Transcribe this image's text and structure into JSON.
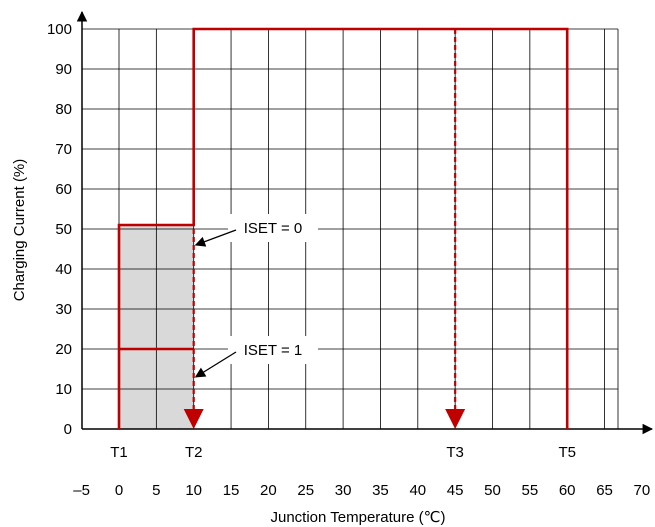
{
  "colors": {
    "curve": "#c00000",
    "grid": "#000000",
    "shade": "#d9d9d9",
    "callout_bg": "#ffffff"
  },
  "chart_data": {
    "type": "line",
    "title": "",
    "xlabel": "Junction Temperature (℃)",
    "ylabel": "Charging Current (%)",
    "xlim": [
      -5,
      70
    ],
    "ylim": [
      0,
      100
    ],
    "x_ticks": [
      -5,
      0,
      5,
      10,
      15,
      20,
      25,
      30,
      35,
      40,
      45,
      50,
      55,
      60,
      65,
      70
    ],
    "x_tick_labels": [
      "–5",
      "0",
      "5",
      "10",
      "15",
      "20",
      "25",
      "30",
      "35",
      "40",
      "45",
      "50",
      "55",
      "60",
      "65",
      "70"
    ],
    "y_ticks": [
      0,
      10,
      20,
      30,
      40,
      50,
      60,
      70,
      80,
      90,
      100
    ],
    "y_tick_labels": [
      "0",
      "10",
      "20",
      "30",
      "40",
      "50",
      "60",
      "70",
      "80",
      "90",
      "100"
    ],
    "grid": true,
    "threshold_labels": [
      {
        "label": "T1",
        "x": 0
      },
      {
        "label": "T2",
        "x": 10
      },
      {
        "label": "T3",
        "x": 45
      },
      {
        "label": "T5",
        "x": 60
      }
    ],
    "series": [
      {
        "style": "solid",
        "x": [
          0,
          0,
          10,
          10,
          60,
          60
        ],
        "y": [
          0,
          51,
          51,
          100,
          100,
          0
        ]
      },
      {
        "style": "solid",
        "x": [
          0,
          10
        ],
        "y": [
          20,
          20
        ]
      },
      {
        "style": "dashed-arrow",
        "x": [
          10,
          10
        ],
        "y": [
          100,
          0
        ]
      },
      {
        "style": "dashed-arrow",
        "x": [
          45,
          45
        ],
        "y": [
          100,
          0
        ]
      }
    ],
    "shaded_region": {
      "x": [
        0,
        10
      ],
      "y": [
        0,
        51
      ]
    },
    "annotations": [
      {
        "text": "ISET = 0",
        "target": {
          "x": 10,
          "y": 46
        }
      },
      {
        "text": "ISET = 1",
        "target": {
          "x": 10,
          "y": 13
        }
      }
    ]
  }
}
